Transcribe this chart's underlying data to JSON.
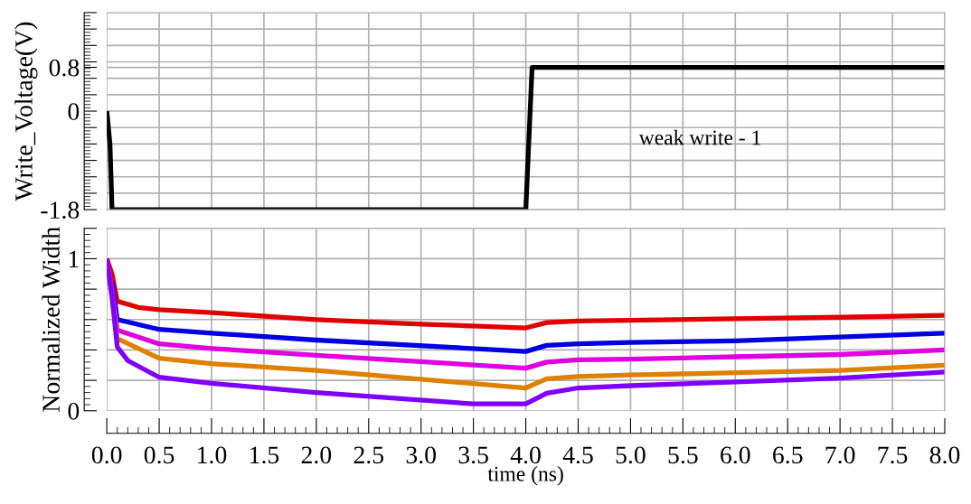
{
  "chart_data": [
    {
      "type": "line",
      "ylabel": "Write_Voltage(V)",
      "tick_labels": "y",
      "grid": true,
      "xlim": [
        0,
        8
      ],
      "xticks": [
        0,
        0.5,
        1,
        1.5,
        2,
        2.5,
        3,
        3.5,
        4,
        4.5,
        5,
        5.5,
        6,
        6.5,
        7,
        7.5,
        8
      ],
      "ylim": [
        -1.8,
        1.8
      ],
      "yticks": [
        -1.8,
        {
          "value": -1.5,
          "label": null
        },
        {
          "value": -1.2,
          "label": null
        },
        {
          "value": -0.9,
          "label": null
        },
        {
          "value": -0.6,
          "label": null
        },
        {
          "value": -0.3,
          "label": null
        },
        0,
        {
          "value": 0.3,
          "label": null
        },
        {
          "value": 0.6,
          "label": null
        },
        0.8,
        {
          "value": 0.9,
          "label": null
        },
        {
          "value": 1.2,
          "label": null
        },
        {
          "value": 1.5,
          "label": null
        },
        {
          "value": 1.8,
          "label": null
        }
      ],
      "annotations": [
        "weak write - 1"
      ],
      "series": [
        {
          "color": "#000000",
          "x": [
            0,
            0.03,
            0.05,
            4.0,
            4.06,
            8.0
          ],
          "values": [
            0.0,
            -0.6,
            -1.8,
            -1.8,
            0.8,
            0.8
          ]
        }
      ]
    },
    {
      "type": "line",
      "ylabel": "Normalized Width",
      "xlabel": "time (ns)",
      "grid": true,
      "xlim": [
        0,
        8
      ],
      "xticks": [
        {
          "value": 0,
          "label": "0.0"
        },
        {
          "value": 0.5,
          "label": "0.5"
        },
        {
          "value": 1,
          "label": "1.0"
        },
        {
          "value": 1.5,
          "label": "1.5"
        },
        {
          "value": 2,
          "label": "2.0"
        },
        {
          "value": 2.5,
          "label": "2.5"
        },
        {
          "value": 3,
          "label": "3.0"
        },
        {
          "value": 3.5,
          "label": "3.5"
        },
        {
          "value": 4,
          "label": "4.0"
        },
        {
          "value": 4.5,
          "label": "4.5"
        },
        {
          "value": 5,
          "label": "5.0"
        },
        {
          "value": 5.5,
          "label": "5.5"
        },
        {
          "value": 6,
          "label": "6.0"
        },
        {
          "value": 6.5,
          "label": "6.5"
        },
        {
          "value": 7,
          "label": "7.0"
        },
        {
          "value": 7.5,
          "label": "7.5"
        },
        {
          "value": 8,
          "label": "8.0"
        }
      ],
      "ylim": [
        0,
        1.2
      ],
      "yticks": [
        0,
        {
          "value": 0.2,
          "label": null
        },
        {
          "value": 0.4,
          "label": null
        },
        {
          "value": 0.6,
          "label": null
        },
        {
          "value": 0.8,
          "label": null
        },
        1,
        {
          "value": 1.2,
          "label": null
        }
      ],
      "series": [
        {
          "color": "#e00000",
          "x": [
            0,
            0.05,
            0.1,
            0.3,
            0.5,
            1,
            2,
            3,
            4,
            4.2,
            4.5,
            5,
            6,
            7,
            8
          ],
          "values": [
            1.0,
            0.9,
            0.72,
            0.68,
            0.665,
            0.645,
            0.6,
            0.57,
            0.545,
            0.58,
            0.59,
            0.595,
            0.605,
            0.615,
            0.628
          ]
        },
        {
          "color": "#0000e0",
          "x": [
            0.05,
            0.1,
            0.5,
            1,
            2,
            4,
            4.2,
            4.5,
            5,
            6,
            7,
            8
          ],
          "values": [
            0.85,
            0.6,
            0.535,
            0.51,
            0.465,
            0.39,
            0.43,
            0.44,
            0.45,
            0.46,
            0.485,
            0.51
          ]
        },
        {
          "color": "#e000e0",
          "x": [
            0,
            0.05,
            0.1,
            0.5,
            1,
            2,
            4,
            4.2,
            4.5,
            5,
            6,
            7,
            8
          ],
          "values": [
            1.0,
            0.8,
            0.53,
            0.44,
            0.41,
            0.365,
            0.28,
            0.32,
            0.335,
            0.34,
            0.355,
            0.37,
            0.4
          ]
        },
        {
          "color": "#e08000",
          "x": [
            0,
            0.1,
            0.5,
            1,
            2,
            4,
            4.2,
            4.5,
            5,
            6,
            7,
            8
          ],
          "values": [
            1.0,
            0.475,
            0.345,
            0.31,
            0.265,
            0.15,
            0.21,
            0.225,
            0.235,
            0.25,
            0.265,
            0.3
          ]
        },
        {
          "color": "#8000ff",
          "x": [
            0,
            0.05,
            0.1,
            0.2,
            0.5,
            1,
            2,
            3.5,
            4,
            4.2,
            4.5,
            5,
            6,
            7,
            8
          ],
          "values": [
            1.0,
            0.75,
            0.42,
            0.33,
            0.22,
            0.18,
            0.12,
            0.045,
            0.045,
            0.115,
            0.15,
            0.165,
            0.19,
            0.215,
            0.255
          ]
        }
      ]
    }
  ]
}
